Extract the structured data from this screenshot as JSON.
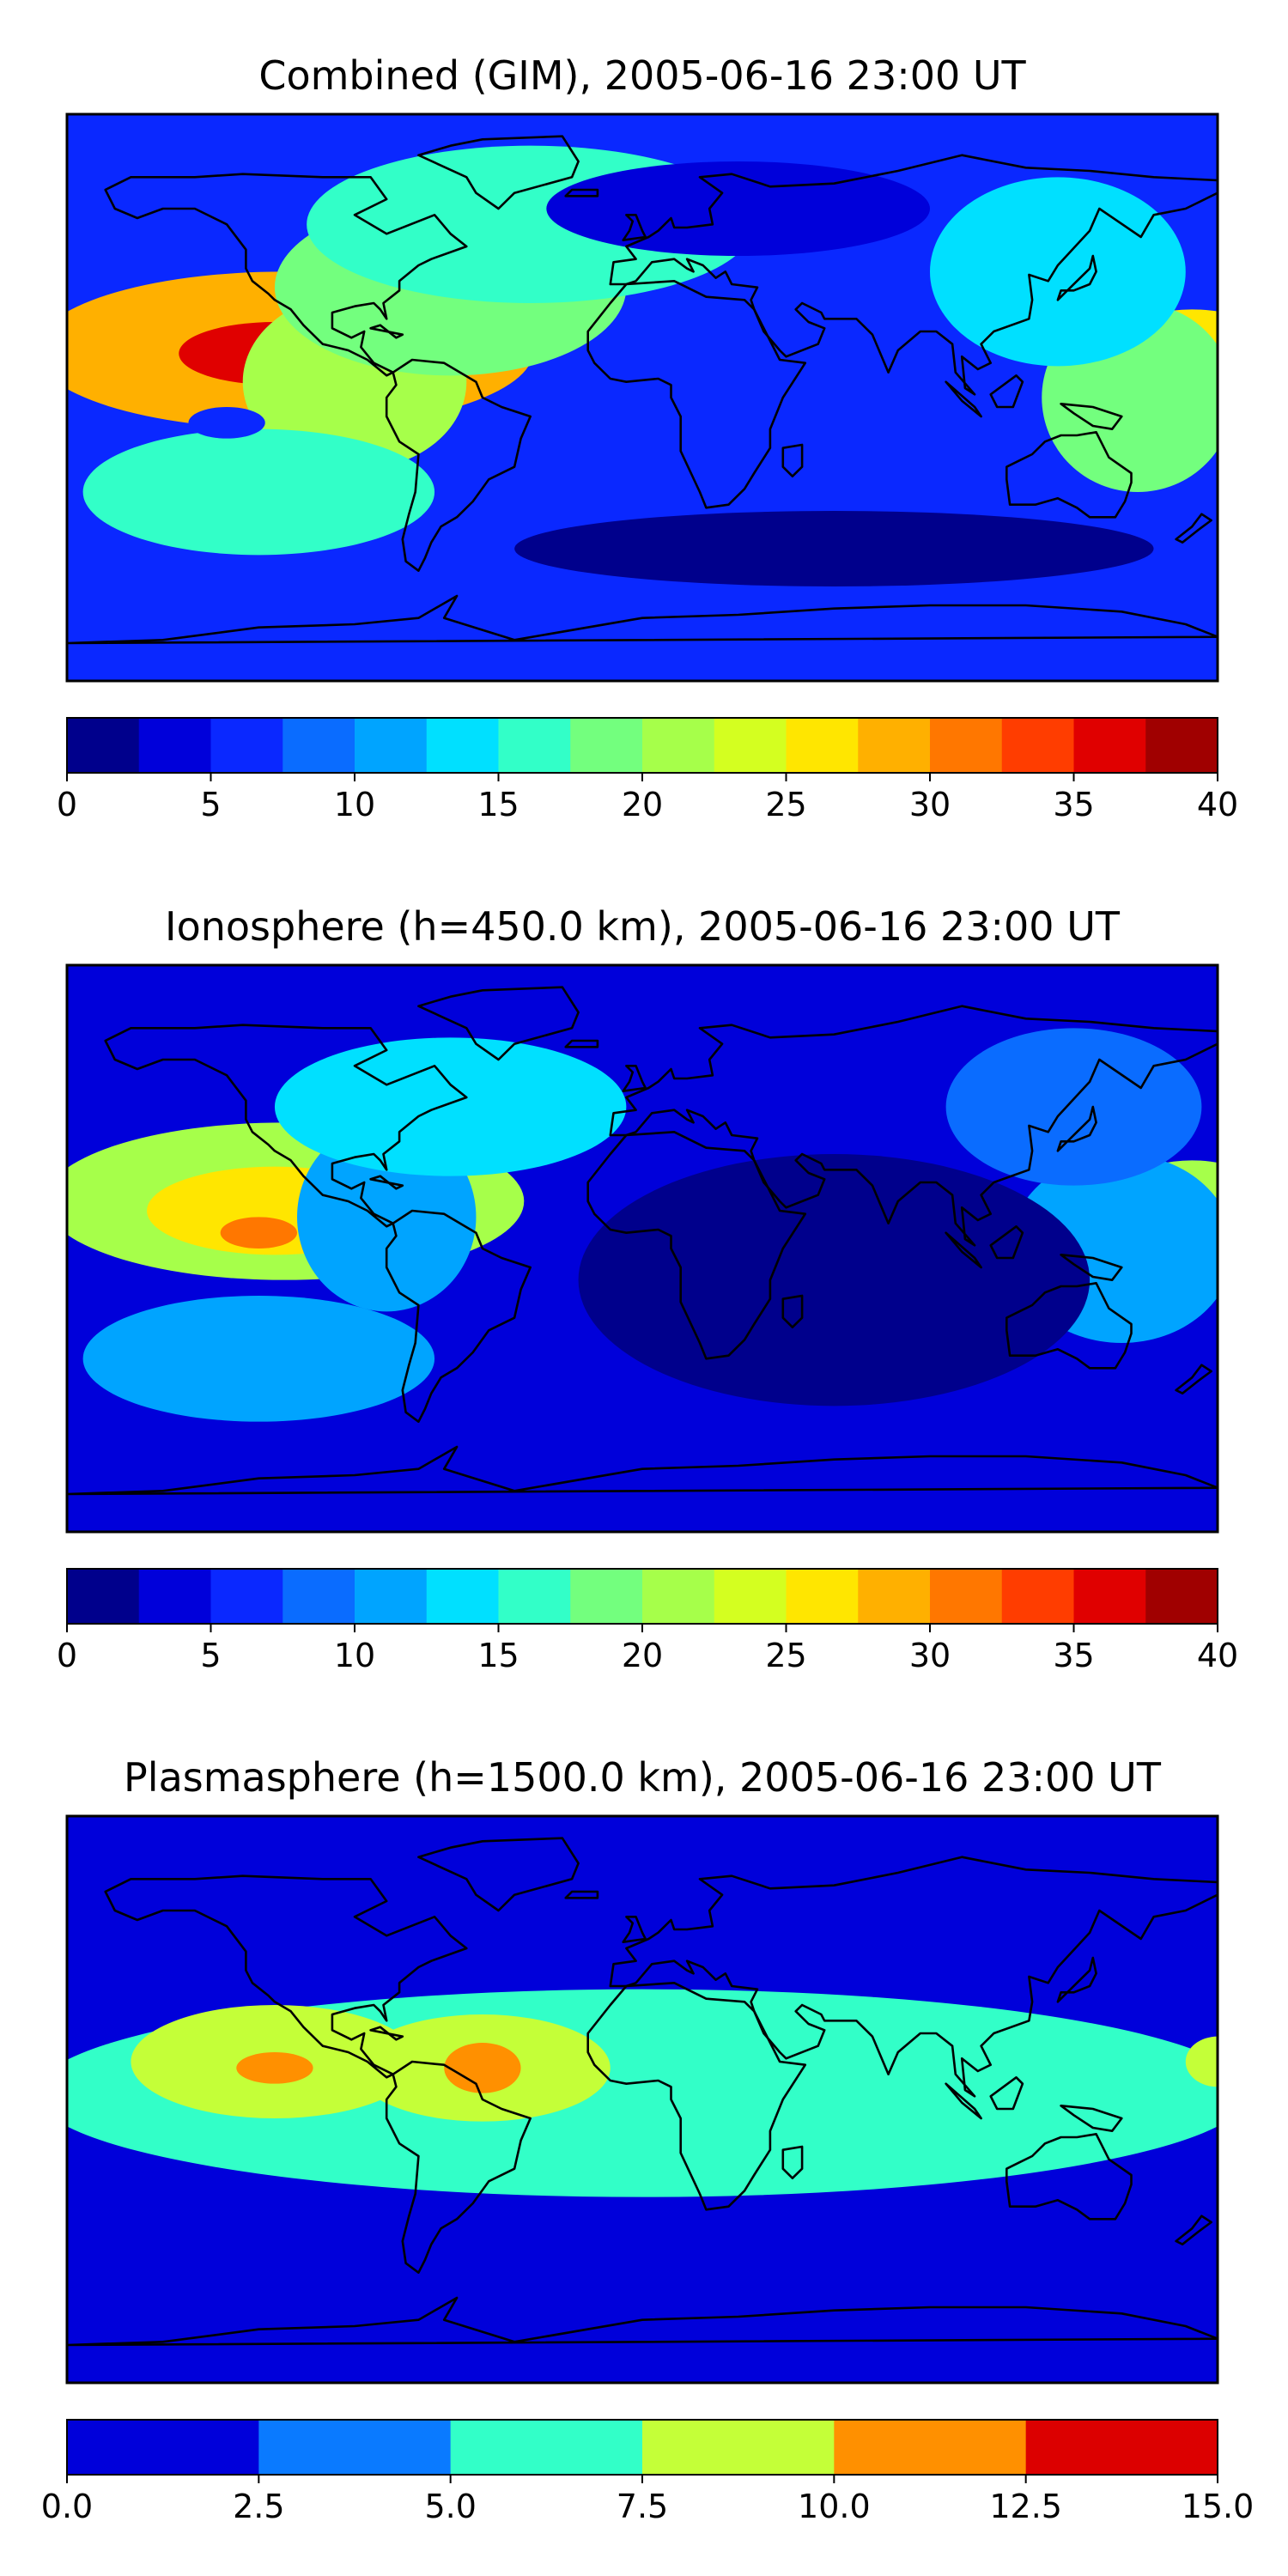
{
  "figure": {
    "background": "#ffffff"
  },
  "chart_data": [
    {
      "type": "heatmap",
      "title": "Combined (GIM), 2005-06-16 23:00 UT",
      "map": "world coastline, plate carree",
      "xlim": [
        -180,
        180
      ],
      "ylim": [
        -90,
        90
      ],
      "colorbar": {
        "levels": [
          0,
          2.5,
          5,
          7.5,
          10,
          12.5,
          15,
          17.5,
          20,
          22.5,
          25,
          27.5,
          30,
          32.5,
          35,
          37.5,
          40
        ],
        "colors": [
          "#00008c",
          "#0000da",
          "#0a28ff",
          "#0a6cff",
          "#00a4ff",
          "#00e0ff",
          "#32ffc8",
          "#73ff7e",
          "#a6ff4a",
          "#d4ff20",
          "#ffe600",
          "#ffb000",
          "#ff7700",
          "#ff3d00",
          "#e00000",
          "#a00000"
        ],
        "ticks": [
          0,
          5,
          10,
          15,
          20,
          25,
          30,
          35,
          40
        ],
        "tick_labels": [
          "0",
          "5",
          "10",
          "15",
          "20",
          "25",
          "30",
          "35",
          "40"
        ]
      },
      "background_value": 7,
      "features": [
        {
          "lon": -112,
          "lat": 15,
          "value": 28,
          "rlon": 78,
          "rlat": 25
        },
        {
          "lon": -115,
          "lat": 14,
          "value": 36.5,
          "rlon": 30,
          "rlat": 10
        },
        {
          "lon": -90,
          "lat": 5,
          "value": 22,
          "rlon": 35,
          "rlat": 28
        },
        {
          "lon": -60,
          "lat": 35,
          "value": 19,
          "rlon": 55,
          "rlat": 28
        },
        {
          "lon": -35,
          "lat": 55,
          "value": 17,
          "rlon": 70,
          "rlat": 25
        },
        {
          "lon": -120,
          "lat": -30,
          "value": 15,
          "rlon": 55,
          "rlat": 20
        },
        {
          "lon": -130,
          "lat": -8,
          "value": 5,
          "rlon": 12,
          "rlat": 5
        },
        {
          "lon": 172,
          "lat": 8,
          "value": 26,
          "rlon": 32,
          "rlat": 20
        },
        {
          "lon": 155,
          "lat": 0,
          "value": 18,
          "rlon": 30,
          "rlat": 30
        },
        {
          "lon": 130,
          "lat": 40,
          "value": 14,
          "rlon": 40,
          "rlat": 30
        },
        {
          "lon": 30,
          "lat": 60,
          "value": 4,
          "rlon": 60,
          "rlat": 15
        },
        {
          "lon": 60,
          "lat": -48,
          "value": 2,
          "rlon": 100,
          "rlat": 12
        }
      ]
    },
    {
      "type": "heatmap",
      "title": "Ionosphere  (h=450.0 km), 2005-06-16 23:00 UT",
      "map": "world coastline, plate carree",
      "xlim": [
        -180,
        180
      ],
      "ylim": [
        -90,
        90
      ],
      "colorbar": {
        "levels": [
          0,
          2.5,
          5,
          7.5,
          10,
          12.5,
          15,
          17.5,
          20,
          22.5,
          25,
          27.5,
          30,
          32.5,
          35,
          37.5,
          40
        ],
        "colors": [
          "#00008c",
          "#0000da",
          "#0a28ff",
          "#0a6cff",
          "#00a4ff",
          "#00e0ff",
          "#32ffc8",
          "#73ff7e",
          "#a6ff4a",
          "#d4ff20",
          "#ffe600",
          "#ffb000",
          "#ff7700",
          "#ff3d00",
          "#e00000",
          "#a00000"
        ],
        "ticks": [
          0,
          5,
          10,
          15,
          20,
          25,
          30,
          35,
          40
        ],
        "tick_labels": [
          "0",
          "5",
          "10",
          "15",
          "20",
          "25",
          "30",
          "35",
          "40"
        ]
      },
      "background_value": 4,
      "features": [
        {
          "lon": -112,
          "lat": 15,
          "value": 21,
          "rlon": 75,
          "rlat": 25
        },
        {
          "lon": -115,
          "lat": 12,
          "value": 26,
          "rlon": 40,
          "rlat": 14
        },
        {
          "lon": -120,
          "lat": 5,
          "value": 30,
          "rlon": 12,
          "rlat": 5
        },
        {
          "lon": -80,
          "lat": 10,
          "value": 12,
          "rlon": 28,
          "rlat": 30
        },
        {
          "lon": -60,
          "lat": 45,
          "value": 13,
          "rlon": 55,
          "rlat": 22
        },
        {
          "lon": -120,
          "lat": -35,
          "value": 10,
          "rlon": 55,
          "rlat": 20
        },
        {
          "lon": 172,
          "lat": 8,
          "value": 20,
          "rlon": 30,
          "rlat": 20
        },
        {
          "lon": 150,
          "lat": 0,
          "value": 12,
          "rlon": 35,
          "rlat": 30
        },
        {
          "lon": 135,
          "lat": 45,
          "value": 9,
          "rlon": 40,
          "rlat": 25
        },
        {
          "lon": 60,
          "lat": -10,
          "value": 1,
          "rlon": 80,
          "rlat": 40
        }
      ]
    },
    {
      "type": "heatmap",
      "title": "Plasmasphere (h=1500.0 km), 2005-06-16 23:00 UT",
      "map": "world coastline, plate carree",
      "xlim": [
        -180,
        180
      ],
      "ylim": [
        -90,
        90
      ],
      "colorbar": {
        "levels": [
          0,
          2.5,
          5,
          7.5,
          10,
          12.5,
          15
        ],
        "colors": [
          "#0000da",
          "#0a7aff",
          "#32ffc8",
          "#c4ff38",
          "#ff9000",
          "#dc0000"
        ],
        "ticks": [
          0,
          2.5,
          5,
          7.5,
          10,
          12.5,
          15
        ],
        "tick_labels": [
          "0.0",
          "2.5",
          "5.0",
          "7.5",
          "10.0",
          "12.5",
          "15.0"
        ]
      },
      "background_value": 1.5,
      "features": [
        {
          "lon": 0,
          "lat": 2,
          "value": 5.8,
          "rlon": 190,
          "rlat": 33
        },
        {
          "lon": -115,
          "lat": 12,
          "value": 8.5,
          "rlon": 45,
          "rlat": 18
        },
        {
          "lon": -115,
          "lat": 10,
          "value": 11,
          "rlon": 12,
          "rlat": 5
        },
        {
          "lon": -50,
          "lat": 10,
          "value": 8.5,
          "rlon": 40,
          "rlat": 17
        },
        {
          "lon": -50,
          "lat": 10,
          "value": 11,
          "rlon": 12,
          "rlat": 8
        },
        {
          "lon": -133,
          "lat": -35,
          "value": 1.6,
          "rlon": 12,
          "rlat": 7
        },
        {
          "lon": 180,
          "lat": 12,
          "value": 7.5,
          "rlon": 10,
          "rlat": 8
        }
      ]
    }
  ]
}
